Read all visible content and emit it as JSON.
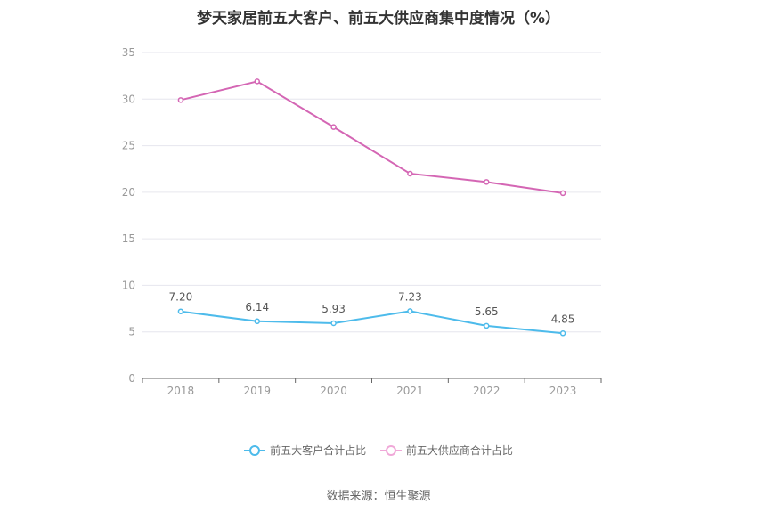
{
  "title": "梦天家居前五大客户、前五大供应商集中度情况（%）",
  "source": "数据来源：恒生聚源",
  "colors": {
    "customers": "#4dbbeb",
    "suppliers": "#d466b4"
  },
  "chart_data": {
    "type": "line",
    "categories": [
      "2018",
      "2019",
      "2020",
      "2021",
      "2022",
      "2023"
    ],
    "ylim": [
      0,
      35
    ],
    "yticks": [
      0,
      5,
      10,
      15,
      20,
      25,
      30,
      35
    ],
    "grid": true,
    "legend_position": "bottom",
    "series": [
      {
        "name": "前五大客户合计占比",
        "values": [
          7.2,
          6.14,
          5.93,
          7.23,
          5.65,
          4.85
        ],
        "labels": [
          "7.20",
          "6.14",
          "5.93",
          "7.23",
          "5.65",
          "4.85"
        ],
        "show_labels": true
      },
      {
        "name": "前五大供应商合计占比",
        "values": [
          29.9,
          31.9,
          27.0,
          22.0,
          21.1,
          19.9
        ],
        "show_labels": false
      }
    ]
  }
}
